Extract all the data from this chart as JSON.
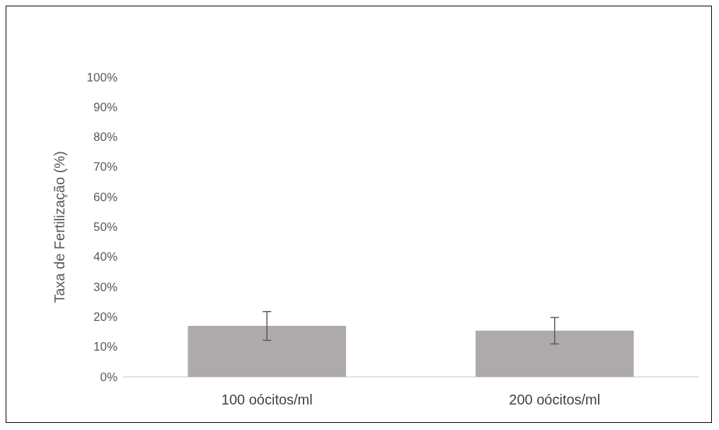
{
  "chart_data": {
    "type": "bar",
    "ylabel": "Taxa de Fertilização (%)",
    "categories": [
      "100 oócitos/ml",
      "200 oócitos/ml"
    ],
    "values": [
      17.0,
      15.4
    ],
    "errors": [
      4.8,
      4.4
    ],
    "color": "#aeaaaa",
    "ylim": [
      0,
      100
    ],
    "yticks": [
      {
        "value": 0,
        "label": "0%"
      },
      {
        "value": 10,
        "label": "10%"
      },
      {
        "value": 20,
        "label": "20%"
      },
      {
        "value": 30,
        "label": "30%"
      },
      {
        "value": 40,
        "label": "40%"
      },
      {
        "value": 50,
        "label": "50%"
      },
      {
        "value": 60,
        "label": "60%"
      },
      {
        "value": 70,
        "label": "70%"
      },
      {
        "value": 80,
        "label": "80%"
      },
      {
        "value": 90,
        "label": "90%"
      },
      {
        "value": 100,
        "label": "100%"
      }
    ],
    "grid": false
  }
}
